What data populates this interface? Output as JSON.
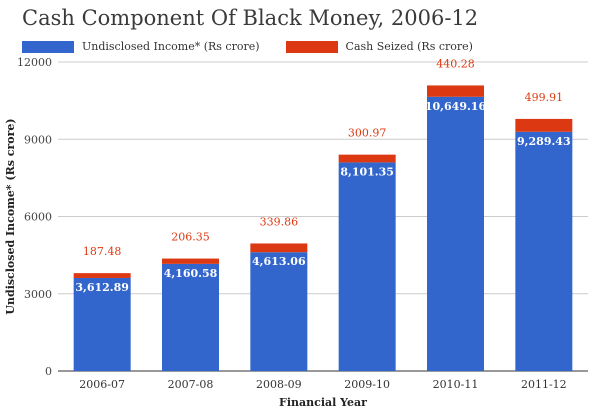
{
  "chart_data": {
    "type": "bar",
    "stacked": true,
    "title": "Cash Component Of Black Money, 2006-12",
    "xlabel": "Financial Year",
    "ylabel": "Undisclosed Income* (Rs crore)",
    "categories": [
      "2006-07",
      "2007-08",
      "2008-09",
      "2009-10",
      "2010-11",
      "2011-12"
    ],
    "ylim": [
      0,
      12000
    ],
    "yticks": [
      "0",
      "3000",
      "6000",
      "9000",
      "12000"
    ],
    "yticks_values": [
      0,
      3000,
      6000,
      9000,
      12000
    ],
    "grid": true,
    "legend_position": "top-left",
    "series": [
      {
        "name": "Undisclosed Income* (Rs crore)",
        "color": "#3366cc",
        "values": [
          3612.89,
          4160.58,
          4613.06,
          8101.35,
          10649.16,
          9289.43
        ],
        "labels": [
          "3,612.89",
          "4,160.58",
          "4,613.06",
          "8,101.35",
          "10,649.16",
          "9,289.43"
        ]
      },
      {
        "name": "Cash Seized (Rs crore)",
        "color": "#dc3912",
        "values": [
          187.48,
          206.35,
          339.86,
          300.97,
          440.28,
          499.91
        ],
        "labels": [
          "187.48",
          "206.35",
          "339.86",
          "300.97",
          "440.28",
          "499.91"
        ]
      }
    ]
  }
}
